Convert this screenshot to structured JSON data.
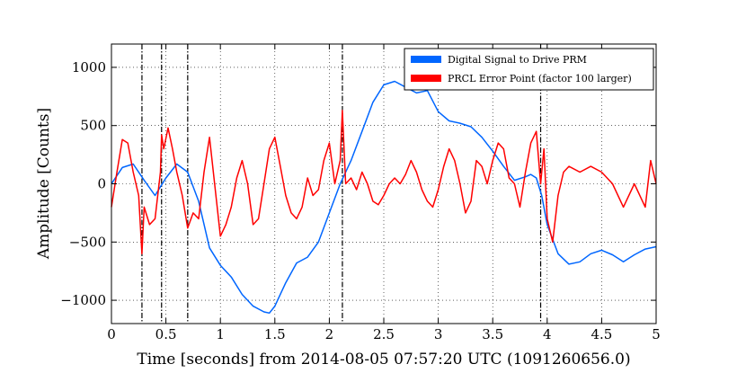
{
  "chart_data": {
    "type": "line",
    "xlabel": "Time [seconds] from 2014-08-05 07:57:20 UTC (1091260656.0)",
    "ylabel": "Amplitude [Counts]",
    "xlim": [
      0,
      5
    ],
    "ylim": [
      -1200,
      1200
    ],
    "x_ticks": [
      0,
      0.5,
      1,
      1.5,
      2,
      2.5,
      3,
      3.5,
      4,
      4.5,
      5
    ],
    "x_tick_labels": [
      "0",
      "0.5",
      "1",
      "1.5",
      "2",
      "2.5",
      "3",
      "3.5",
      "4",
      "4.5",
      "5"
    ],
    "y_ticks": [
      -1000,
      -500,
      0,
      500,
      1000
    ],
    "y_tick_labels": [
      "−1000",
      "−500",
      "0",
      "500",
      "1000"
    ],
    "grid": true,
    "legend_position": "top-right",
    "event_lines_x": [
      0.28,
      0.46,
      0.7,
      2.12,
      3.94
    ],
    "series": [
      {
        "name": "Digital Signal to Drive PRM",
        "color": "#0066ff",
        "x": [
          0,
          0.1,
          0.2,
          0.3,
          0.4,
          0.5,
          0.6,
          0.7,
          0.8,
          0.9,
          1.0,
          1.1,
          1.2,
          1.3,
          1.4,
          1.45,
          1.5,
          1.6,
          1.7,
          1.8,
          1.9,
          2.0,
          2.1,
          2.2,
          2.3,
          2.4,
          2.5,
          2.6,
          2.7,
          2.8,
          2.9,
          3.0,
          3.1,
          3.2,
          3.3,
          3.4,
          3.5,
          3.6,
          3.7,
          3.8,
          3.85,
          3.9,
          3.95,
          4.0,
          4.1,
          4.2,
          4.3,
          4.4,
          4.5,
          4.6,
          4.7,
          4.8,
          4.9,
          5.0
        ],
        "y": [
          0,
          140,
          170,
          30,
          -100,
          50,
          170,
          100,
          -150,
          -550,
          -700,
          -800,
          -950,
          -1050,
          -1100,
          -1110,
          -1050,
          -850,
          -680,
          -630,
          -500,
          -250,
          0,
          200,
          450,
          700,
          850,
          880,
          830,
          780,
          800,
          620,
          540,
          520,
          490,
          400,
          280,
          150,
          30,
          60,
          80,
          50,
          -100,
          -350,
          -600,
          -690,
          -670,
          -600,
          -570,
          -610,
          -670,
          -610,
          -560,
          -540
        ]
      },
      {
        "name": "PRCL Error Point (factor 100 larger)",
        "color": "#ff0000",
        "x": [
          0,
          0.05,
          0.1,
          0.15,
          0.2,
          0.25,
          0.28,
          0.3,
          0.35,
          0.4,
          0.45,
          0.46,
          0.48,
          0.52,
          0.56,
          0.6,
          0.65,
          0.7,
          0.75,
          0.8,
          0.85,
          0.9,
          1.0,
          1.05,
          1.1,
          1.15,
          1.2,
          1.25,
          1.3,
          1.35,
          1.4,
          1.45,
          1.5,
          1.55,
          1.6,
          1.65,
          1.7,
          1.75,
          1.8,
          1.85,
          1.9,
          1.95,
          2.0,
          2.05,
          2.1,
          2.12,
          2.15,
          2.2,
          2.25,
          2.3,
          2.35,
          2.4,
          2.45,
          2.5,
          2.55,
          2.6,
          2.65,
          2.7,
          2.75,
          2.8,
          2.85,
          2.9,
          2.95,
          3.0,
          3.05,
          3.1,
          3.15,
          3.2,
          3.25,
          3.3,
          3.35,
          3.4,
          3.45,
          3.5,
          3.55,
          3.6,
          3.65,
          3.7,
          3.75,
          3.8,
          3.85,
          3.9,
          3.94,
          3.97,
          4.0,
          4.05,
          4.1,
          4.15,
          4.2,
          4.3,
          4.4,
          4.5,
          4.6,
          4.7,
          4.8,
          4.9,
          4.95,
          5.0
        ],
        "y": [
          -200,
          100,
          380,
          350,
          100,
          -100,
          -600,
          -200,
          -350,
          -300,
          100,
          420,
          300,
          480,
          300,
          100,
          -100,
          -380,
          -250,
          -300,
          100,
          400,
          -450,
          -350,
          -200,
          50,
          200,
          0,
          -350,
          -300,
          0,
          300,
          400,
          150,
          -100,
          -250,
          -300,
          -200,
          50,
          -100,
          -50,
          200,
          350,
          0,
          200,
          630,
          0,
          50,
          -50,
          100,
          0,
          -150,
          -180,
          -100,
          0,
          50,
          0,
          80,
          200,
          100,
          -50,
          -150,
          -200,
          -50,
          150,
          300,
          200,
          0,
          -250,
          -150,
          200,
          150,
          0,
          200,
          350,
          300,
          50,
          0,
          -200,
          100,
          350,
          450,
          0,
          300,
          -300,
          -500,
          -100,
          100,
          150,
          100,
          150,
          100,
          0,
          -200,
          0,
          -200,
          200,
          0
        ]
      }
    ]
  }
}
